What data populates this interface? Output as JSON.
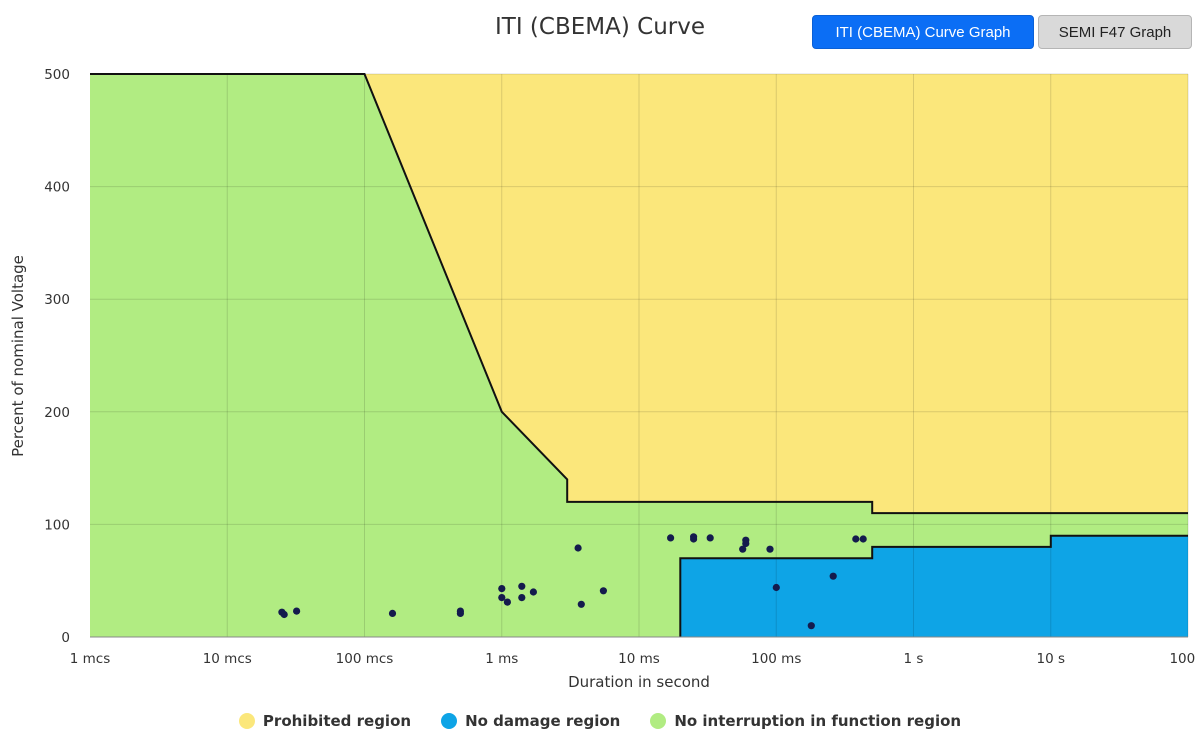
{
  "header": {
    "title": "ITI (CBEMA) Curve",
    "buttons": [
      {
        "label": "ITI (CBEMA) Curve Graph",
        "active": true
      },
      {
        "label": "SEMI F47 Graph",
        "active": false
      }
    ]
  },
  "chart_data": {
    "type": "area",
    "title": "ITI (CBEMA) Curve",
    "xlabel": "Duration in second",
    "ylabel": "Percent of nominal Voltage",
    "x_scale": "log",
    "xlim": [
      1e-06,
      100
    ],
    "ylim": [
      0,
      500
    ],
    "grid": true,
    "legend_position": "bottom",
    "x_ticks": [
      {
        "value": 1e-06,
        "label": "1 mcs"
      },
      {
        "value": 1e-05,
        "label": "10 mcs"
      },
      {
        "value": 0.0001,
        "label": "100 mcs"
      },
      {
        "value": 0.001,
        "label": "1 ms"
      },
      {
        "value": 0.01,
        "label": "10 ms"
      },
      {
        "value": 0.1,
        "label": "100 ms"
      },
      {
        "value": 1,
        "label": "1 s"
      },
      {
        "value": 10,
        "label": "10 s"
      },
      {
        "value": 100,
        "label": "100 s"
      }
    ],
    "y_ticks": [
      0,
      100,
      200,
      300,
      400,
      500
    ],
    "regions": [
      {
        "name": "No interruption in function region",
        "color": "#b1ec82"
      },
      {
        "name": "Prohibited region",
        "color": "#fbe77b"
      },
      {
        "name": "No damage region",
        "color": "#0ea4e6"
      }
    ],
    "upper_curve": [
      [
        1e-06,
        500
      ],
      [
        0.0001,
        500
      ],
      [
        0.001,
        200
      ],
      [
        0.003,
        140
      ],
      [
        0.003,
        120
      ],
      [
        0.5,
        120
      ],
      [
        0.5,
        110
      ],
      [
        100,
        110
      ]
    ],
    "lower_curve": [
      [
        0.02,
        0
      ],
      [
        0.02,
        70
      ],
      [
        0.5,
        70
      ],
      [
        0.5,
        80
      ],
      [
        10,
        80
      ],
      [
        10,
        90
      ],
      [
        100,
        90
      ]
    ],
    "points": [
      [
        2.5e-05,
        22
      ],
      [
        2.6e-05,
        20
      ],
      [
        3.2e-05,
        23
      ],
      [
        0.00016,
        21
      ],
      [
        0.0005,
        21
      ],
      [
        0.0005,
        23
      ],
      [
        0.001,
        43
      ],
      [
        0.001,
        35
      ],
      [
        0.0011,
        31
      ],
      [
        0.0014,
        45
      ],
      [
        0.0014,
        35
      ],
      [
        0.0017,
        40
      ],
      [
        0.0036,
        79
      ],
      [
        0.0038,
        29
      ],
      [
        0.0055,
        41
      ],
      [
        0.017,
        88
      ],
      [
        0.025,
        89
      ],
      [
        0.025,
        87
      ],
      [
        0.033,
        88
      ],
      [
        0.057,
        78
      ],
      [
        0.06,
        86
      ],
      [
        0.06,
        83
      ],
      [
        0.09,
        78
      ],
      [
        0.1,
        44
      ],
      [
        0.18,
        10
      ],
      [
        0.26,
        54
      ],
      [
        0.38,
        87
      ],
      [
        0.43,
        87
      ]
    ],
    "legend": [
      {
        "label": "Prohibited region",
        "color": "#fbe77b"
      },
      {
        "label": "No damage region",
        "color": "#0ea4e6"
      },
      {
        "label": "No interruption in function region",
        "color": "#b1ec82"
      }
    ]
  }
}
